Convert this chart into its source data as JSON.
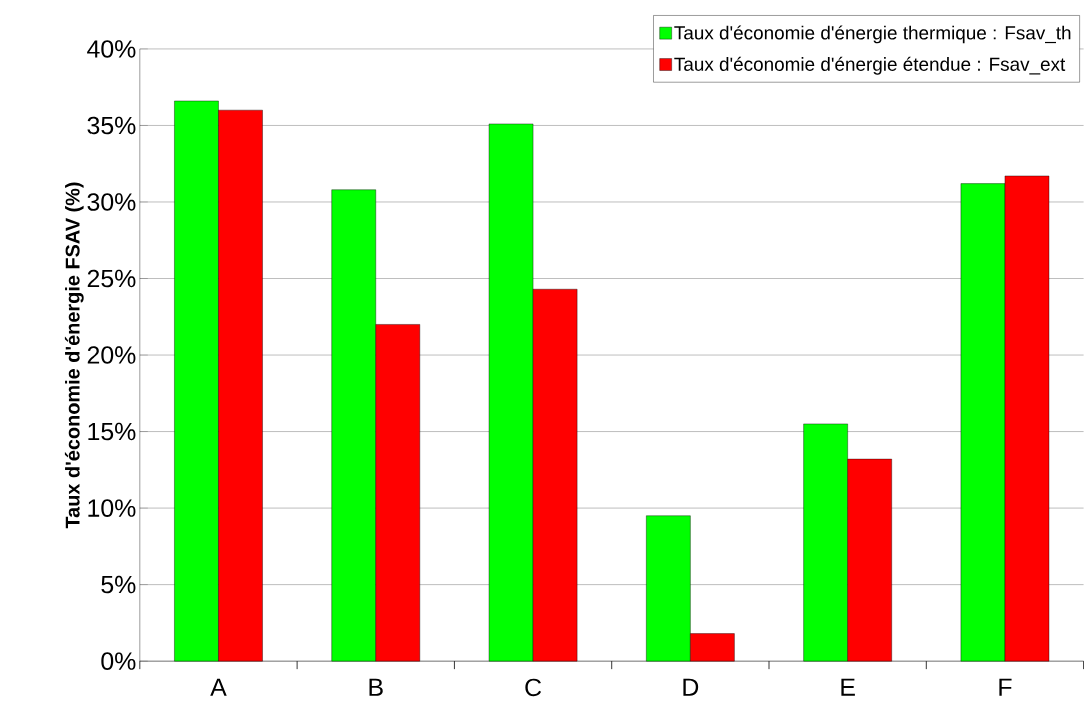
{
  "chart_data": {
    "type": "bar",
    "categories": [
      "A",
      "B",
      "C",
      "D",
      "E",
      "F"
    ],
    "ylabel": "Taux d'économie d'énergie FSAV (%)",
    "series": [
      {
        "name": "Taux d'économie d'énergie thermique : Fsav_th",
        "color": "#00ff00",
        "values": [
          36.6,
          30.8,
          35.1,
          9.5,
          15.5,
          31.2
        ]
      },
      {
        "name": "Taux d'économie d'énergie étendue : Fsav_ext",
        "color": "#ff0000",
        "values": [
          36.0,
          22.0,
          24.3,
          1.8,
          13.2,
          31.7
        ]
      }
    ],
    "ylim": [
      0,
      40
    ],
    "yticks": [
      {
        "value": 0,
        "label": "0%"
      },
      {
        "value": 5,
        "label": "5%"
      },
      {
        "value": 10,
        "label": "10%"
      },
      {
        "value": 15,
        "label": "15%"
      },
      {
        "value": 20,
        "label": "20%"
      },
      {
        "value": 25,
        "label": "25%"
      },
      {
        "value": 30,
        "label": "30%"
      },
      {
        "value": 35,
        "label": "35%"
      },
      {
        "value": 40,
        "label": "40%"
      }
    ],
    "grid": "y",
    "legend": "top right"
  }
}
